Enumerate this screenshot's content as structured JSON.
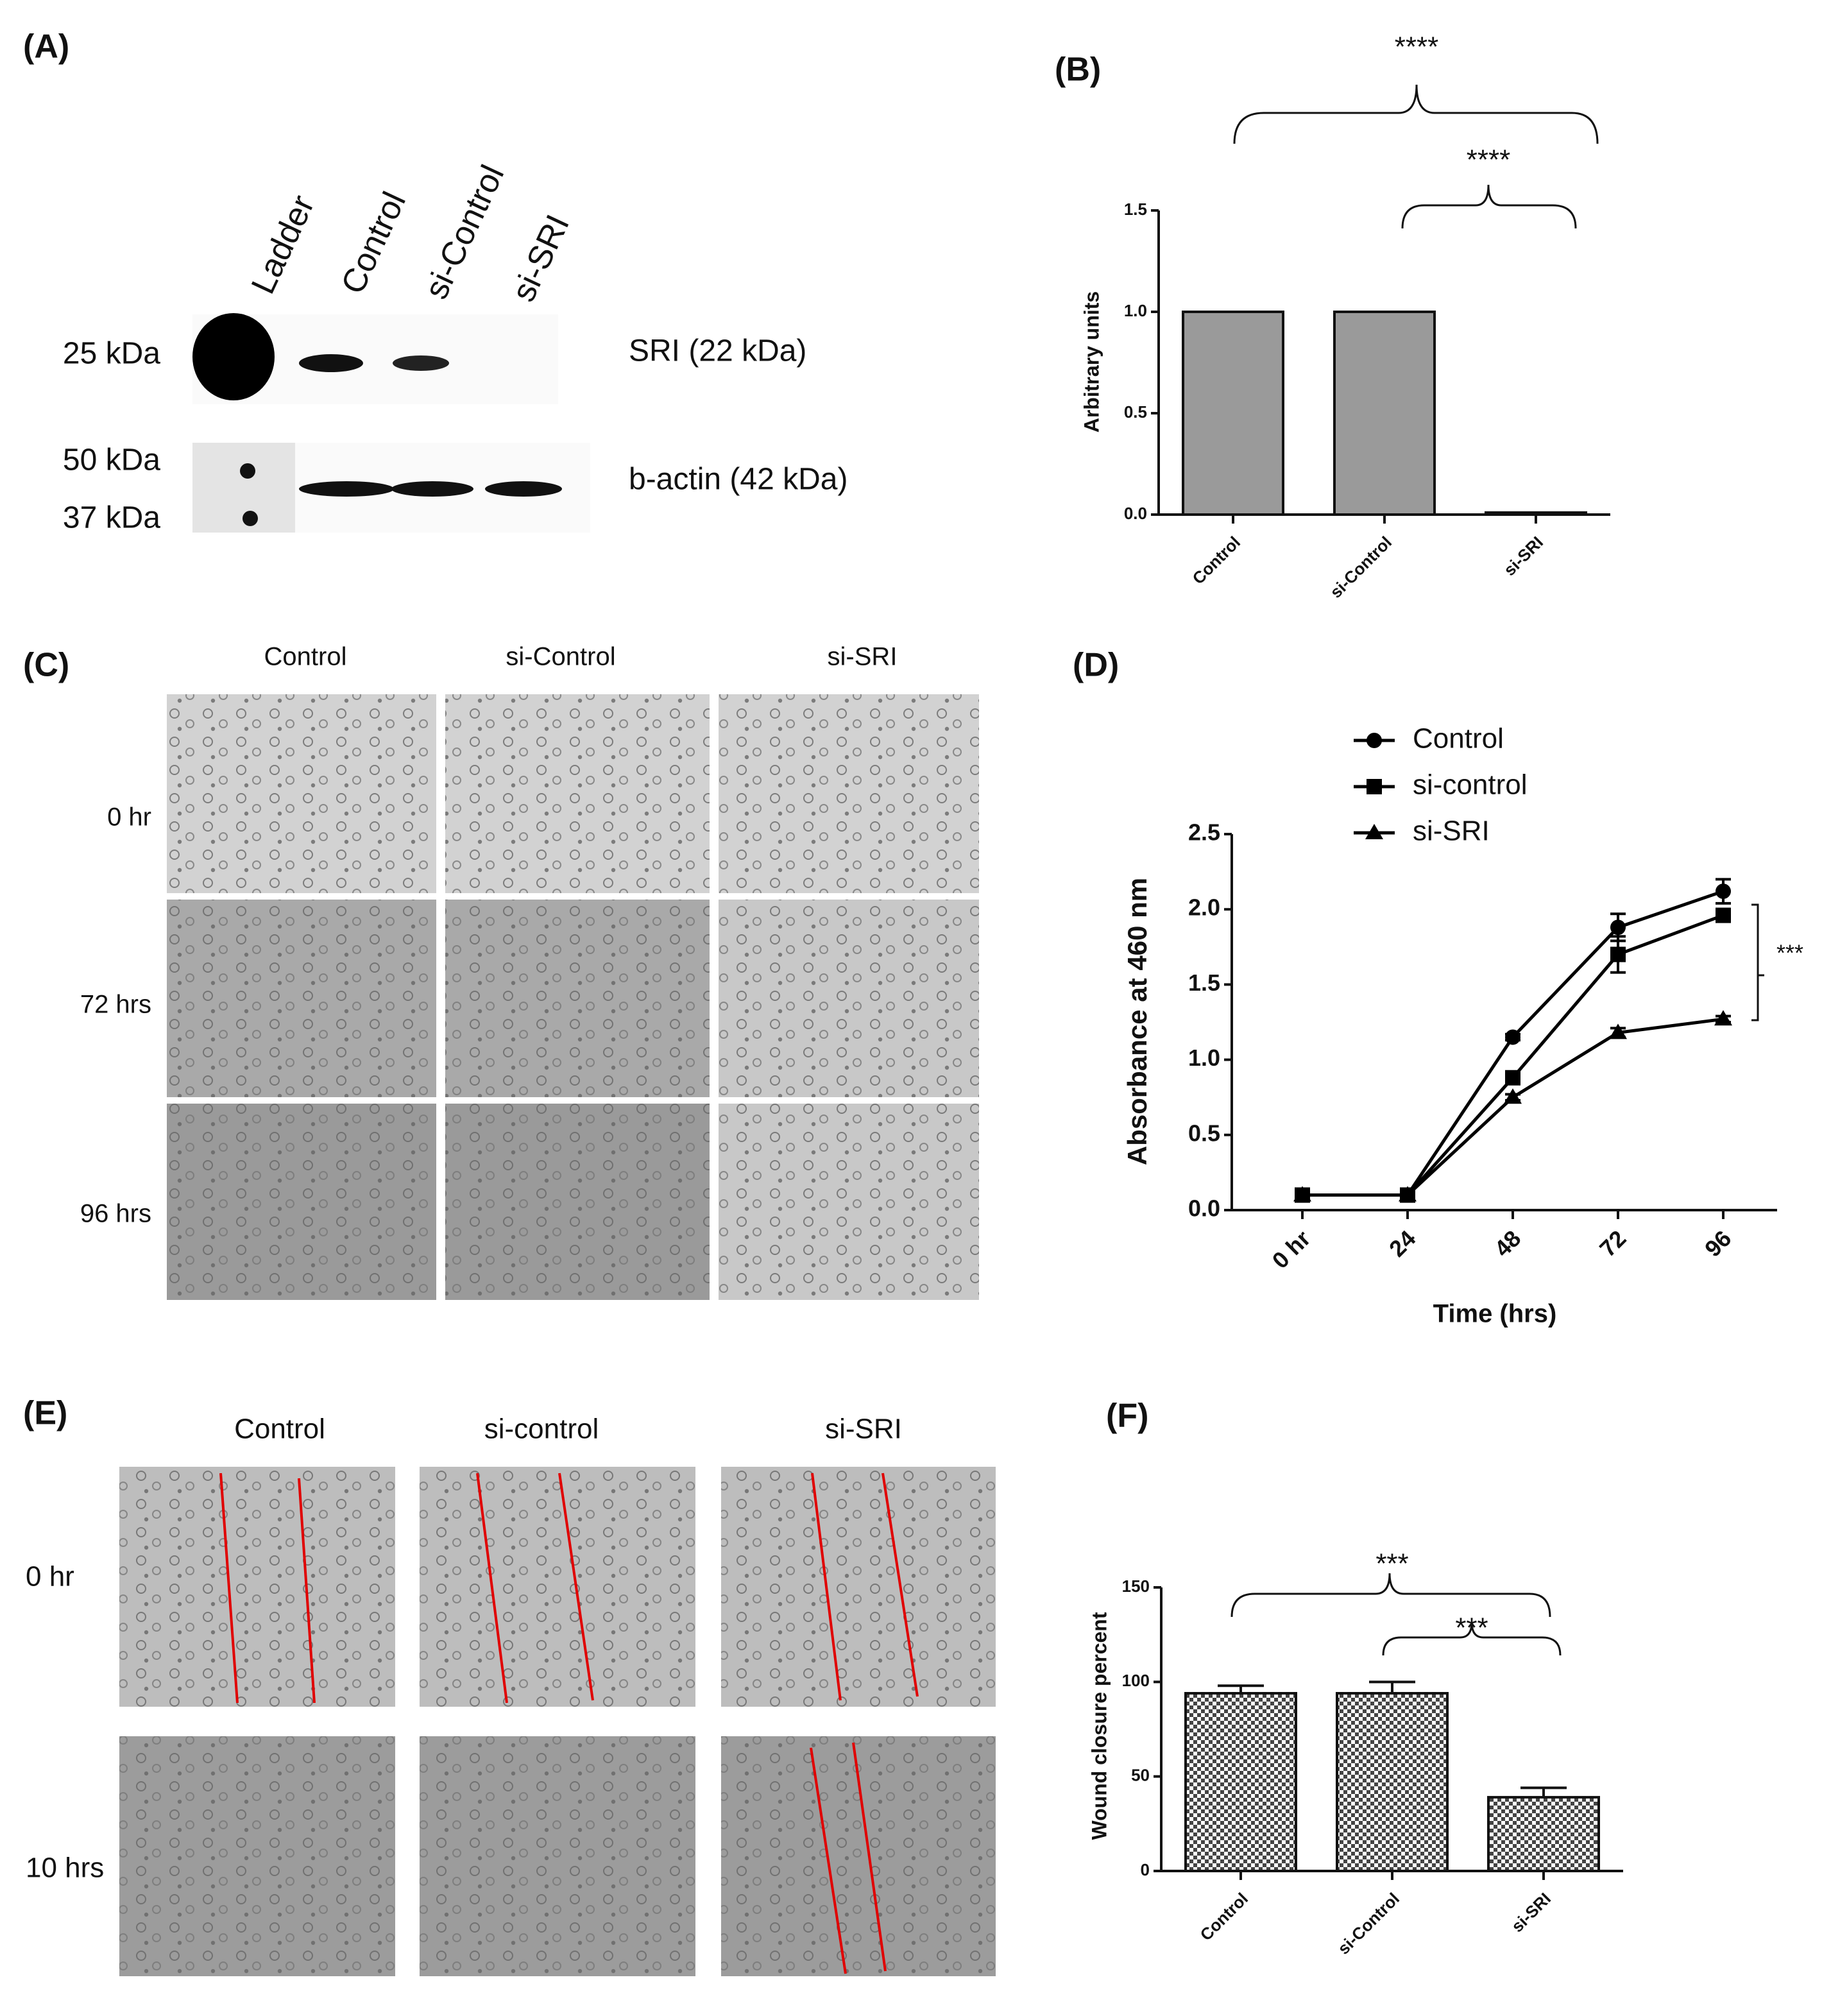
{
  "panels": {
    "labels": [
      "(A)",
      "(B)",
      "(C)",
      "(D)",
      "(E)",
      "(F)"
    ]
  },
  "blot": {
    "lanes": [
      "Ladder",
      "Control",
      "si-Control",
      "si-SRI"
    ],
    "markers": [
      "25 kDa",
      "50 kDa",
      "37 kDa"
    ],
    "bands": [
      "SRI (22 kDa)",
      "b-actin (42 kDa)"
    ]
  },
  "proliferation_images": {
    "columns": [
      "Control",
      "si-Control",
      "si-SRI"
    ],
    "rows": [
      "0 hr",
      "72 hrs",
      "96 hrs"
    ]
  },
  "wound_images": {
    "columns": [
      "Control",
      "si-control",
      "si-SRI"
    ],
    "rows": [
      "0 hr",
      "10 hrs"
    ]
  },
  "chart_data": [
    {
      "type": "bar",
      "ylabel": "Arbitrary units",
      "categories": [
        "Control",
        "si-Control",
        "si-SRI"
      ],
      "values": [
        1.0,
        1.0,
        0.01
      ],
      "color": "#9a9a9a",
      "hatch": false,
      "ylim": [
        0,
        1.5
      ],
      "yticks": [
        {
          "value": 0,
          "label": "0.0"
        },
        {
          "value": 0.5,
          "label": "0.5"
        },
        {
          "value": 1,
          "label": "1.0"
        },
        {
          "value": 1.5,
          "label": "1.5"
        }
      ],
      "annotations": [
        "****",
        "****"
      ]
    },
    {
      "type": "line",
      "ylabel": "Absorbance at 460 nm",
      "xlabel": "Time (hrs)",
      "categories": [
        "0 hr",
        "24",
        "48",
        "72",
        "96"
      ],
      "series": [
        {
          "name": "Control",
          "color": "#000000",
          "marker": "circle",
          "values": [
            0.1,
            0.1,
            1.15,
            1.88,
            2.12
          ],
          "errors": [
            0,
            0,
            0.02,
            0.09,
            0.08
          ]
        },
        {
          "name": "si-control",
          "color": "#000000",
          "marker": "square",
          "values": [
            0.1,
            0.1,
            0.88,
            1.7,
            1.96
          ],
          "errors": [
            0,
            0,
            0.03,
            0.12,
            0.03
          ]
        },
        {
          "name": "si-SRI",
          "color": "#000000",
          "marker": "triangle",
          "values": [
            0.1,
            0.1,
            0.75,
            1.18,
            1.27
          ],
          "errors": [
            0,
            0,
            0.02,
            0.03,
            0.02
          ]
        }
      ],
      "ylim": [
        0,
        2.5
      ],
      "yticks": [
        {
          "value": 0,
          "label": "0.0"
        },
        {
          "value": 0.5,
          "label": "0.5"
        },
        {
          "value": 1,
          "label": "1.0"
        },
        {
          "value": 1.5,
          "label": "1.5"
        },
        {
          "value": 2,
          "label": "2.0"
        },
        {
          "value": 2.5,
          "label": "2.5"
        }
      ],
      "annotations": [
        "***"
      ]
    },
    {
      "type": "bar",
      "ylabel": "Wound closure percent",
      "categories": [
        "Control",
        "si-Control",
        "si-SRI"
      ],
      "values": [
        94,
        94,
        39
      ],
      "errors": [
        4,
        6,
        5
      ],
      "color": "#555555",
      "hatch": true,
      "ylim": [
        0,
        150
      ],
      "yticks": [
        0,
        50,
        100,
        150
      ],
      "annotations": [
        "***",
        "***"
      ]
    }
  ]
}
